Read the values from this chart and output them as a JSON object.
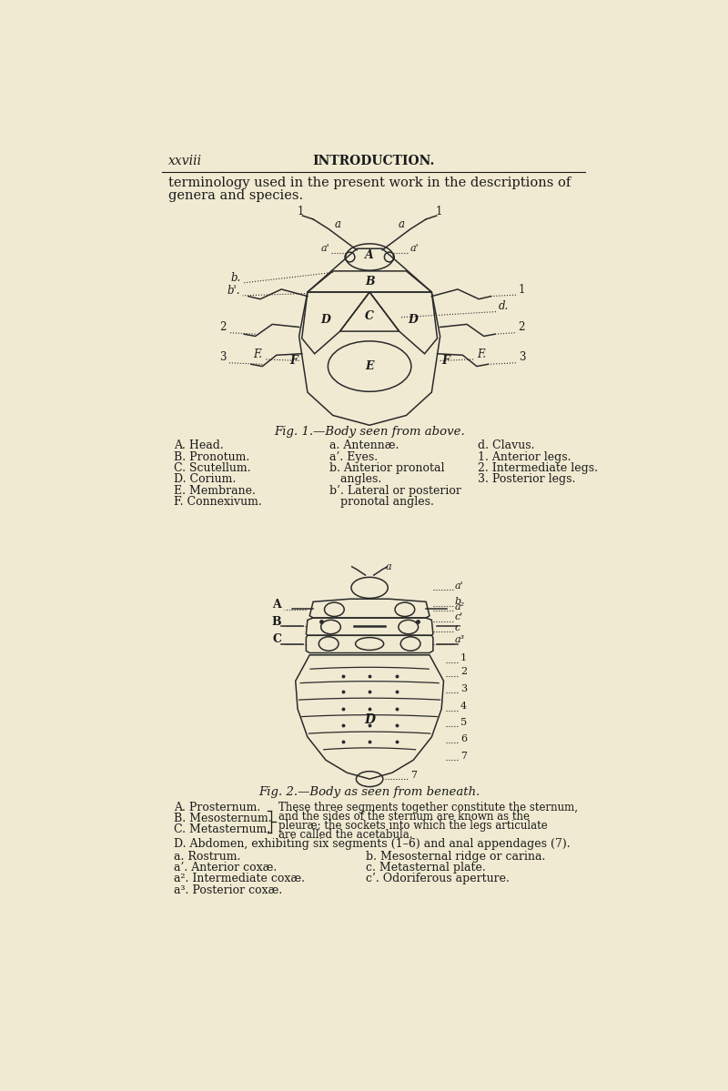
{
  "bg_color": "#f0ead2",
  "text_color": "#1a1a1a",
  "page_header_left": "xxviii",
  "page_header_center": "INTRODUCTION.",
  "intro_text_line1": "terminology used in the present work in the descriptions of",
  "intro_text_line2": "genera and species.",
  "fig1_caption": "Fig. 1.—Body seen from above.",
  "fig2_caption": "Fig. 2.—Body as seen from beneath.",
  "fig1_labels_left": [
    "A. Head.",
    "B. Pronotum.",
    "C. Scutellum.",
    "D. Corium.",
    "E. Membrane.",
    "F. Connexivum."
  ],
  "fig1_labels_mid": [
    "a. Antennæ.",
    "a’. Eyes.",
    "b. Anterior pronotal",
    "   angles.",
    "b’. Lateral or posterior",
    "   pronotal angles."
  ],
  "fig1_labels_right": [
    "d. Clavus.",
    "1. Anterior legs.",
    "2. Intermediate legs.",
    "3. Posterior legs."
  ],
  "fig2_labels_left": [
    "A. Prosternum.",
    "B. Mesosternum.",
    "C. Metasternum."
  ],
  "fig2_bracket_text": [
    "These three segments together constitute the sternum,",
    "and the sides of the sternum are known as the",
    "pleuræ; the sockets into which the legs articulate",
    "are called the acetabula."
  ],
  "fig2_labels_D": "D. Abdomen, exhibiting six segments (1–6) and anal appendages (7).",
  "fig2_labels_col1": [
    "a. Rostrum.",
    "a’. Anterior coxæ.",
    "a². Intermediate coxæ.",
    "a³. Posterior coxæ."
  ],
  "fig2_labels_col2": [
    "b. Mesosternal ridge or carina.",
    "c. Metasternal plate.",
    "c’. Odoriferous aperture."
  ]
}
